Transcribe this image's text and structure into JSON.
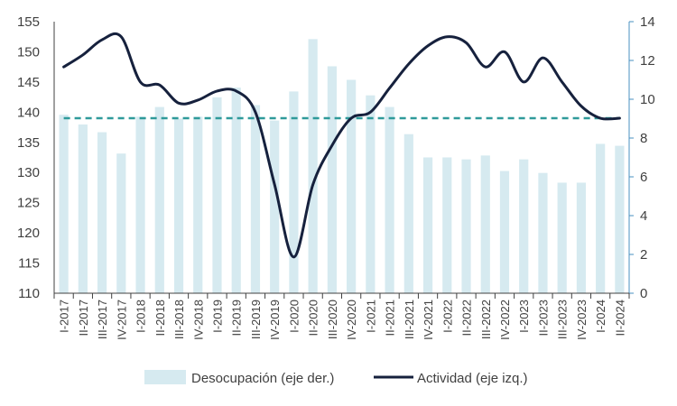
{
  "chart_data": {
    "type": "bar",
    "categories": [
      "I-2017",
      "II-2017",
      "III-2017",
      "IV-2017",
      "I-2018",
      "II-2018",
      "III-2018",
      "IV-2018",
      "I-2019",
      "II-2019",
      "III-2019",
      "IV-2019",
      "I-2020",
      "II-2020",
      "III-2020",
      "IV-2020",
      "I-2021",
      "II-2021",
      "III-2021",
      "IV-2021",
      "I-2022",
      "II-2022",
      "III-2022",
      "IV-2022",
      "I-2023",
      "II-2023",
      "III-2023",
      "IV-2023",
      "I-2024",
      "II-2024"
    ],
    "series": [
      {
        "name": "Desocupación (eje der.)",
        "type": "bar",
        "axis": "right",
        "color": "#d6eaf0",
        "values": [
          9.2,
          8.7,
          8.3,
          7.2,
          9.1,
          9.6,
          9.0,
          9.1,
          10.1,
          10.6,
          9.7,
          8.9,
          10.4,
          13.1,
          11.7,
          11.0,
          10.2,
          9.6,
          8.2,
          7.0,
          7.0,
          6.9,
          7.1,
          6.3,
          6.9,
          6.2,
          5.7,
          5.7,
          7.7,
          7.6
        ]
      },
      {
        "name": "Actividad (eje izq.)",
        "type": "line",
        "axis": "left",
        "color": "#16213d",
        "values": [
          147.5,
          149.5,
          152.0,
          152.5,
          145.0,
          144.5,
          141.5,
          142.0,
          143.5,
          143.5,
          140.0,
          128.0,
          116.0,
          128.0,
          134.5,
          139.0,
          140.0,
          144.0,
          148.0,
          151.0,
          152.5,
          151.5,
          147.5,
          150.0,
          145.0,
          149.0,
          145.0,
          141.0,
          139.0,
          139.0
        ]
      }
    ],
    "reference_line": {
      "value": 139.0,
      "axis": "left",
      "color": "#2e9a9a"
    },
    "ylim_left": [
      110,
      155
    ],
    "yticks_left": [
      "110",
      "115",
      "120",
      "125",
      "130",
      "135",
      "140",
      "145",
      "150",
      "155"
    ],
    "ylim_right": [
      0,
      14
    ],
    "yticks_right": [
      "0",
      "2",
      "4",
      "6",
      "8",
      "10",
      "12",
      "14"
    ],
    "right_axis_color": "#4a90c0",
    "legend": {
      "position": "bottom",
      "items": [
        {
          "label": "Desocupación (eje der.)",
          "kind": "bar"
        },
        {
          "label": "Actividad (eje izq.)",
          "kind": "line"
        }
      ]
    },
    "grid": false
  }
}
